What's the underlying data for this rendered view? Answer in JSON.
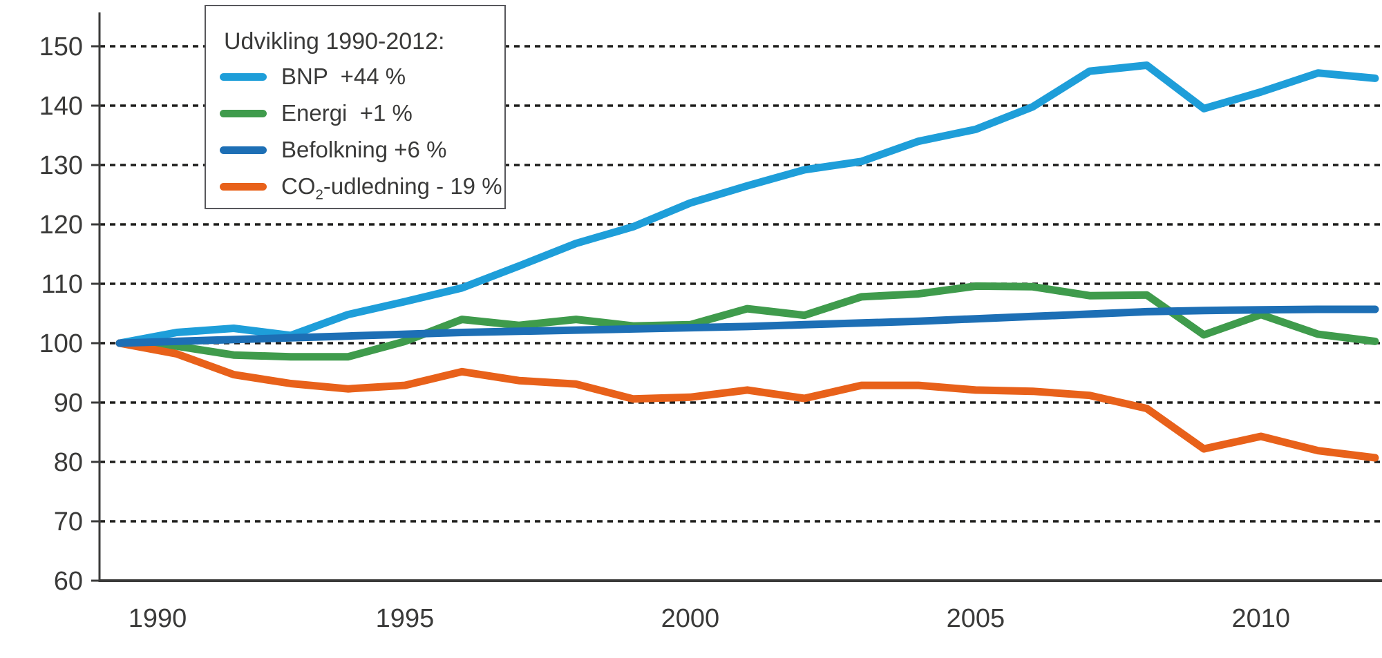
{
  "chart_data": {
    "type": "line",
    "legend": {
      "title": "Udvikling 1990-2012:",
      "position": "top-left-inside"
    },
    "x": [
      1990,
      1991,
      1992,
      1993,
      1994,
      1995,
      1996,
      1997,
      1998,
      1999,
      2000,
      2001,
      2002,
      2003,
      2004,
      2005,
      2006,
      2007,
      2008,
      2009,
      2010,
      2011,
      2012
    ],
    "x_ticks": [
      1990,
      1995,
      2000,
      2005,
      2010
    ],
    "y_ticks": [
      60,
      70,
      80,
      90,
      100,
      110,
      120,
      130,
      140,
      150
    ],
    "ylim": [
      60,
      152
    ],
    "grid": "horizontal-dashed",
    "colors": {
      "axis": "#3a3a39",
      "gridline": "#1d1d1b",
      "text": "#3a3a39"
    },
    "series": [
      {
        "name": "BNP",
        "legend_label": "BNP  +44 %",
        "color": "#1E9ED9",
        "values": [
          100,
          101.8,
          102.5,
          101.3,
          104.8,
          107.0,
          109.3,
          113.0,
          116.8,
          119.6,
          123.6,
          126.5,
          129.2,
          130.6,
          134.0,
          136.0,
          139.8,
          145.8,
          146.8,
          139.5,
          142.3,
          145.5,
          144.6
        ]
      },
      {
        "name": "Energi",
        "legend_label": "Energi  +1 %",
        "color": "#3F9B4C",
        "values": [
          100,
          99.5,
          98.0,
          97.7,
          97.7,
          100.3,
          104.0,
          103.0,
          104.0,
          102.9,
          103.1,
          105.8,
          104.7,
          107.8,
          108.3,
          109.6,
          109.5,
          108.0,
          108.1,
          101.4,
          104.8,
          101.5,
          100.3
        ]
      },
      {
        "name": "Befolkning",
        "legend_label": "Befolkning +6 %",
        "color": "#1D6FB5",
        "values": [
          100,
          100.3,
          100.6,
          100.9,
          101.2,
          101.5,
          101.8,
          102.0,
          102.2,
          102.4,
          102.6,
          102.8,
          103.1,
          103.4,
          103.7,
          104.1,
          104.5,
          104.9,
          105.3,
          105.5,
          105.6,
          105.7,
          105.7
        ]
      },
      {
        "name": "CO2-udledning",
        "legend_label_pre": "CO",
        "legend_label_sub": "2",
        "legend_label_post": "-udledning - 19 %",
        "color": "#E8611A",
        "values": [
          100,
          98.2,
          94.7,
          93.2,
          92.3,
          92.9,
          95.2,
          93.7,
          93.1,
          90.6,
          90.9,
          92.1,
          90.7,
          92.9,
          92.9,
          92.1,
          91.9,
          91.2,
          89.0,
          82.2,
          84.3,
          81.9,
          80.7
        ]
      }
    ]
  }
}
